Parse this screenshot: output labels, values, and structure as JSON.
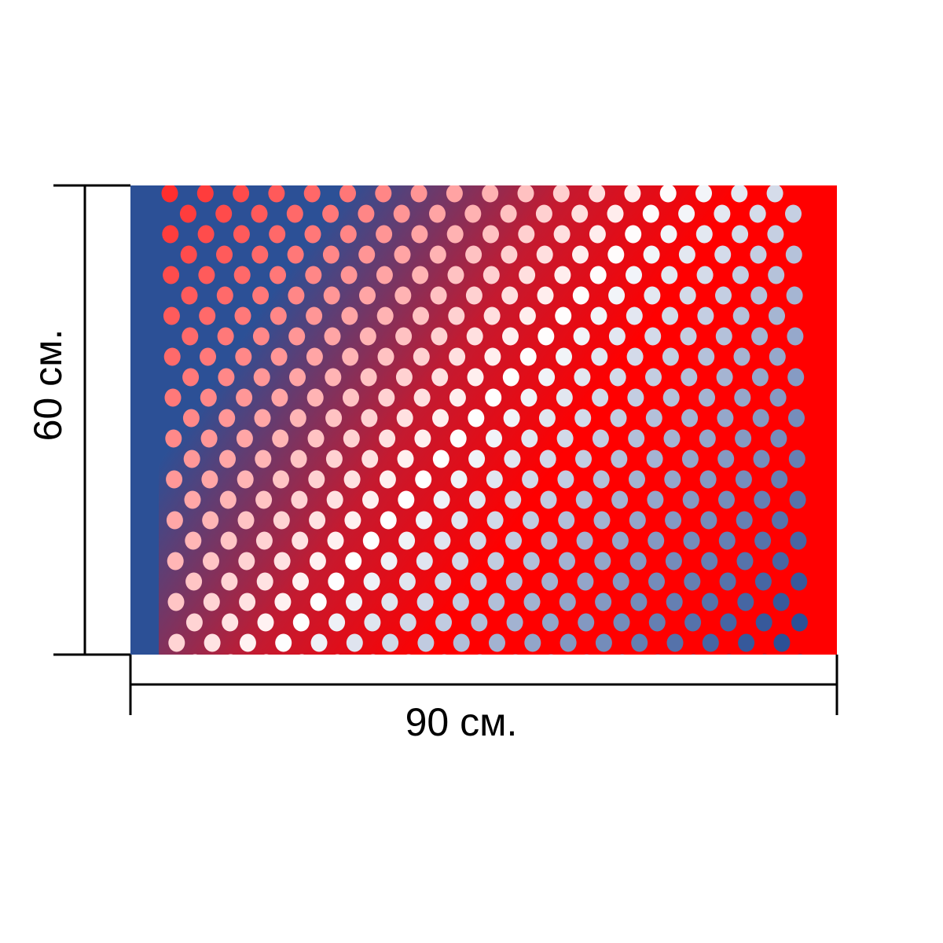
{
  "dimensions": {
    "height_label": "60 см.",
    "width_label": "90 см."
  },
  "pattern": {
    "name": "polka-dot-gradient",
    "colors": {
      "blue": "#2c5096",
      "red": "#ff0000",
      "white": "#ffffff",
      "dot_red": "#ff2a2a"
    }
  }
}
